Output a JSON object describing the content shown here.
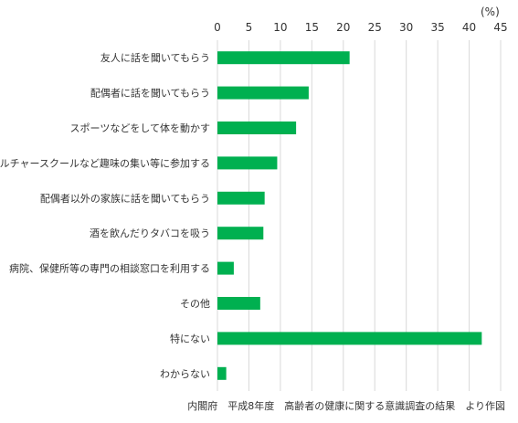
{
  "chart_data": {
    "type": "bar",
    "orientation": "horizontal",
    "unit": "(%)",
    "categories": [
      "友人に話を聞いてもらう",
      "配偶者に話を聞いてもらう",
      "スポーツなどをして体を動かす",
      "カルチャースクールなど趣味の集い等に参加する",
      "配偶者以外の家族に話を聞いてもらう",
      "酒を飲んだりタバコを吸う",
      "病院、保健所等の専門の相談窓口を利用する",
      "その他",
      "特にない",
      "わからない"
    ],
    "values": [
      21,
      14.5,
      12.5,
      9.5,
      7.5,
      7.3,
      2.6,
      6.8,
      42,
      1.4
    ],
    "xlim": [
      0,
      45
    ],
    "xticks": [
      0,
      5,
      10,
      15,
      20,
      25,
      30,
      35,
      40,
      45
    ],
    "grid": true,
    "bar_color": "#00b050",
    "grid_color": "#d9d9d9"
  },
  "source_note": "内閣府　平成8年度　高齢者の健康に関する意識調査の結果　より作図"
}
